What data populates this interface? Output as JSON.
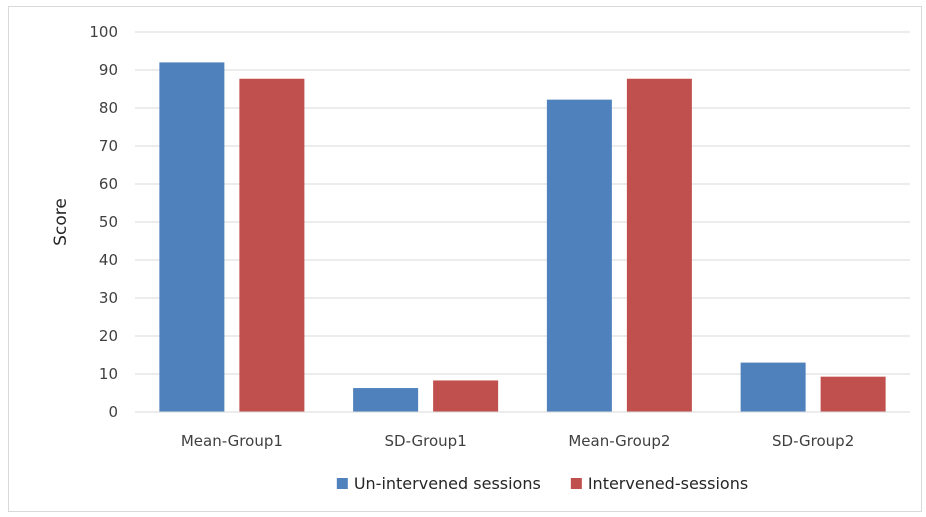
{
  "chart_data": {
    "type": "bar",
    "categories": [
      "Mean-Group1",
      "SD-Group1",
      "Mean-Group2",
      "SD-Group2"
    ],
    "series": [
      {
        "name": "Un-intervened sessions",
        "color": "#4F81BD",
        "values": [
          92,
          6.3,
          82.2,
          13
        ]
      },
      {
        "name": "Intervened-sessions",
        "color": "#C0504D",
        "values": [
          87.7,
          8.3,
          87.7,
          9.3
        ]
      }
    ],
    "title": "",
    "xlabel": "",
    "ylabel": "Score",
    "ylim": [
      0,
      100
    ],
    "yticks": [
      0,
      10,
      20,
      30,
      40,
      50,
      60,
      70,
      80,
      90,
      100
    ],
    "grid": true,
    "legend": "bottom"
  }
}
